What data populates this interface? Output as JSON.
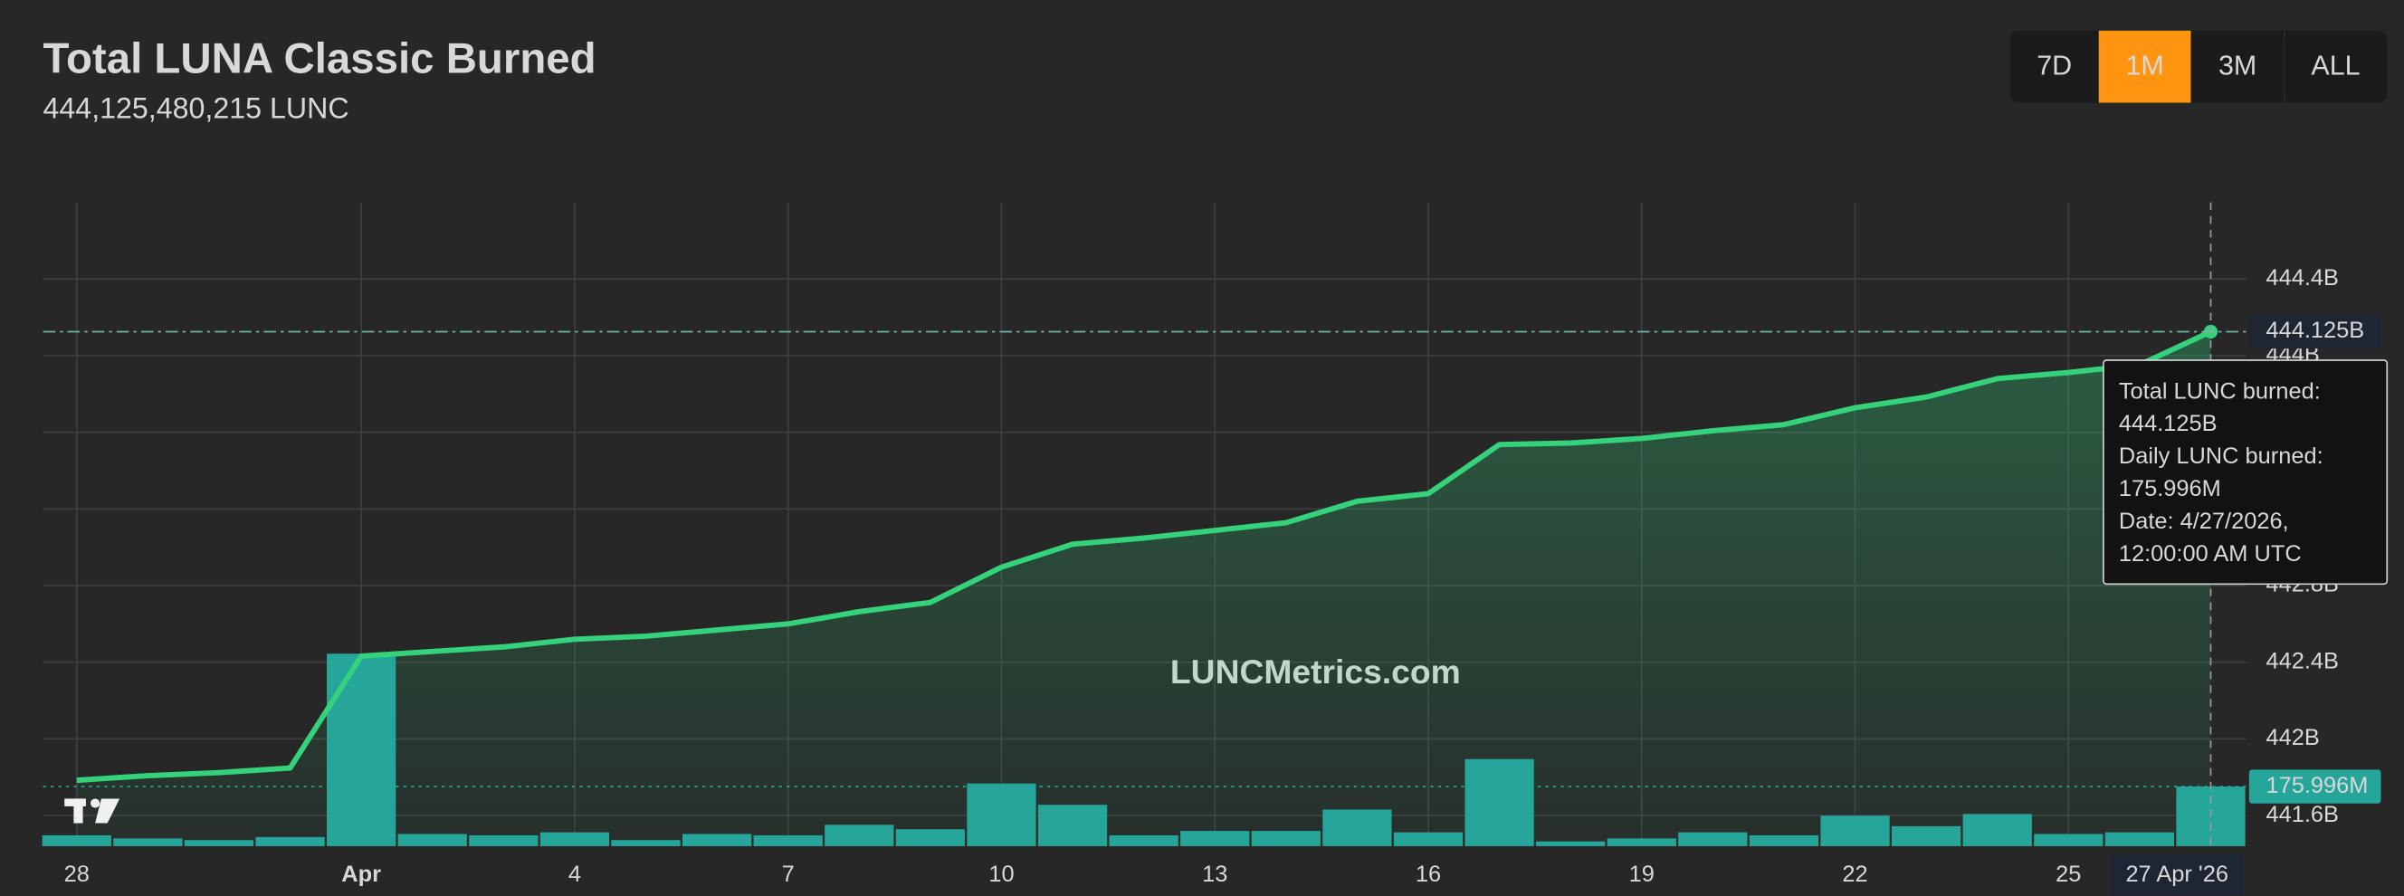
{
  "header": {
    "title": "Total LUNA Classic Burned",
    "subtitle": "444,125,480,215 LUNC"
  },
  "range_buttons": {
    "labels": [
      "7D",
      "1M",
      "3M",
      "ALL"
    ],
    "active": 1
  },
  "chart_data": {
    "type": "line",
    "categories": [
      "28",
      null,
      null,
      null,
      "Apr",
      null,
      null,
      "4",
      null,
      null,
      "7",
      null,
      null,
      "10",
      null,
      null,
      "13",
      null,
      null,
      "16",
      null,
      null,
      "19",
      null,
      null,
      "22",
      null,
      null,
      "25",
      null,
      "27 Apr '26"
    ],
    "series": [
      {
        "type": "line",
        "color": "#34d27b",
        "values": [
          441.784,
          441.808,
          441.824,
          441.848,
          442.432,
          442.456,
          442.48,
          442.52,
          442.536,
          442.568,
          442.6,
          442.664,
          442.712,
          442.896,
          443.016,
          443.048,
          443.088,
          443.128,
          443.24,
          443.28,
          443.536,
          443.544,
          443.568,
          443.608,
          443.64,
          443.728,
          443.784,
          443.88,
          443.912,
          443.952,
          444.125
        ],
        "value_labels": [
          null,
          null,
          null,
          null,
          null,
          null,
          null,
          null,
          null,
          null,
          null,
          null,
          null,
          null,
          null,
          null,
          null,
          null,
          null,
          null,
          null,
          null,
          null,
          null,
          null,
          null,
          null,
          null,
          null,
          null,
          "444.125B"
        ]
      },
      {
        "type": "bar",
        "axis": "y2",
        "color": "#26a69a",
        "values": [
          32,
          23,
          18,
          27,
          568,
          36,
          32,
          41,
          18,
          36,
          32,
          63,
          50,
          185,
          122,
          32,
          45,
          45,
          108,
          41,
          257,
          14,
          23,
          41,
          32,
          90,
          59,
          95,
          36,
          41,
          175.996
        ],
        "value_labels": [
          null,
          null,
          null,
          null,
          null,
          null,
          null,
          null,
          null,
          null,
          null,
          null,
          null,
          null,
          null,
          null,
          null,
          null,
          null,
          null,
          null,
          null,
          null,
          null,
          null,
          null,
          null,
          null,
          null,
          null,
          "175.996M"
        ]
      }
    ],
    "ylim": [
      441.44,
      444.8
    ],
    "yticks": [
      {
        "value": 441.6,
        "label": "441.6B"
      },
      {
        "value": 442,
        "label": "442B"
      },
      {
        "value": 442.4,
        "label": "442.4B"
      },
      {
        "value": 442.8,
        "label": "442.8B"
      },
      {
        "value": 443.2,
        "label": "443.2B"
      },
      {
        "value": 443.6,
        "label": "443.6B"
      },
      {
        "value": 444,
        "label": "444B"
      },
      {
        "value": 444.4,
        "label": "444.4B"
      }
    ],
    "y2lim": [
      0,
      1900
    ],
    "grid": true,
    "watermark": "LUNCMetrics.com",
    "tooltip": [
      "Total LUNC burned:",
      "444.125B",
      "Daily LUNC burned:",
      "175.996M",
      "Date: 4/27/2026,",
      "12:00:00 AM UTC"
    ]
  }
}
